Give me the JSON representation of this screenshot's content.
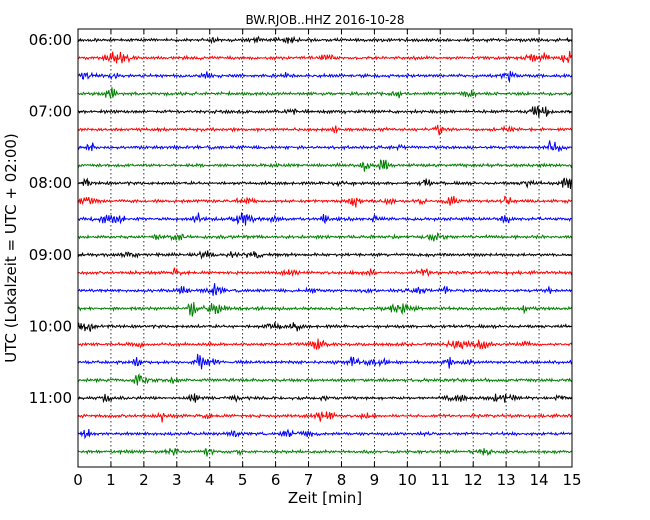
{
  "chart_data": {
    "type": "line",
    "title": "BW.RJOB..HHZ 2016-10-28",
    "xlabel": "Zeit  [min]",
    "ylabel": "UTC (Lokalzeit = UTC + 02:00)",
    "xlim": [
      0,
      15
    ],
    "xticks": [
      "0",
      "1",
      "2",
      "3",
      "4",
      "5",
      "6",
      "7",
      "8",
      "9",
      "10",
      "11",
      "12",
      "13",
      "14",
      "15"
    ],
    "yticks": [
      "06:00",
      "07:00",
      "08:00",
      "09:00",
      "10:00",
      "11:00"
    ],
    "grid": "x-only, dotted",
    "trace_colors": [
      "#000000",
      "#ff0000",
      "#0000ff",
      "#008000"
    ],
    "series": [
      {
        "start": "06:00",
        "color": "#000000"
      },
      {
        "start": "06:15",
        "color": "#ff0000"
      },
      {
        "start": "06:30",
        "color": "#0000ff"
      },
      {
        "start": "06:45",
        "color": "#008000"
      },
      {
        "start": "07:00",
        "color": "#000000"
      },
      {
        "start": "07:15",
        "color": "#ff0000"
      },
      {
        "start": "07:30",
        "color": "#0000ff"
      },
      {
        "start": "07:45",
        "color": "#008000"
      },
      {
        "start": "08:00",
        "color": "#000000"
      },
      {
        "start": "08:15",
        "color": "#ff0000"
      },
      {
        "start": "08:30",
        "color": "#0000ff"
      },
      {
        "start": "08:45",
        "color": "#008000"
      },
      {
        "start": "09:00",
        "color": "#000000"
      },
      {
        "start": "09:15",
        "color": "#ff0000"
      },
      {
        "start": "09:30",
        "color": "#0000ff"
      },
      {
        "start": "09:45",
        "color": "#008000"
      },
      {
        "start": "10:00",
        "color": "#000000"
      },
      {
        "start": "10:15",
        "color": "#ff0000"
      },
      {
        "start": "10:30",
        "color": "#0000ff"
      },
      {
        "start": "10:45",
        "color": "#008000"
      },
      {
        "start": "11:00",
        "color": "#000000"
      },
      {
        "start": "11:15",
        "color": "#ff0000"
      },
      {
        "start": "11:30",
        "color": "#0000ff"
      },
      {
        "start": "11:45",
        "color": "#008000"
      }
    ]
  }
}
